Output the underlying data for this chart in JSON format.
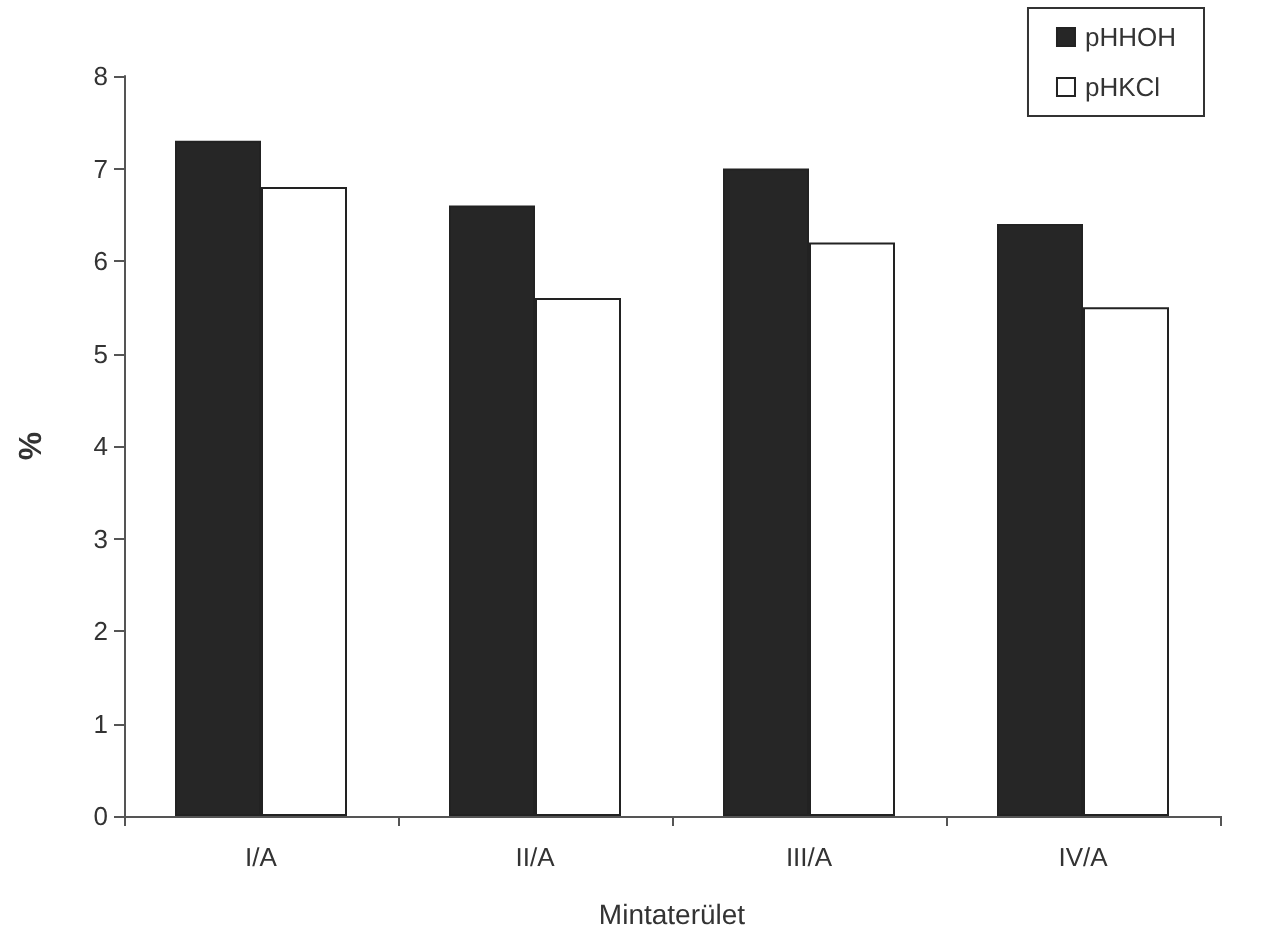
{
  "chart_data": {
    "type": "bar",
    "xlabel": "Mintaterület",
    "ylabel": "%",
    "categories": [
      "I/A",
      "II/A",
      "III/A",
      "IV/A"
    ],
    "series": [
      {
        "name": "pHHOH",
        "color": "#262626",
        "values": [
          7.3,
          6.6,
          7.0,
          6.4
        ]
      },
      {
        "name": "pHKCl",
        "color": "#ffffff",
        "values": [
          6.8,
          5.6,
          6.2,
          5.5
        ]
      }
    ],
    "ylim": [
      0,
      8
    ],
    "yticks": [
      0,
      1,
      2,
      3,
      4,
      5,
      6,
      7,
      8
    ],
    "grid": false,
    "legend": "top right"
  }
}
